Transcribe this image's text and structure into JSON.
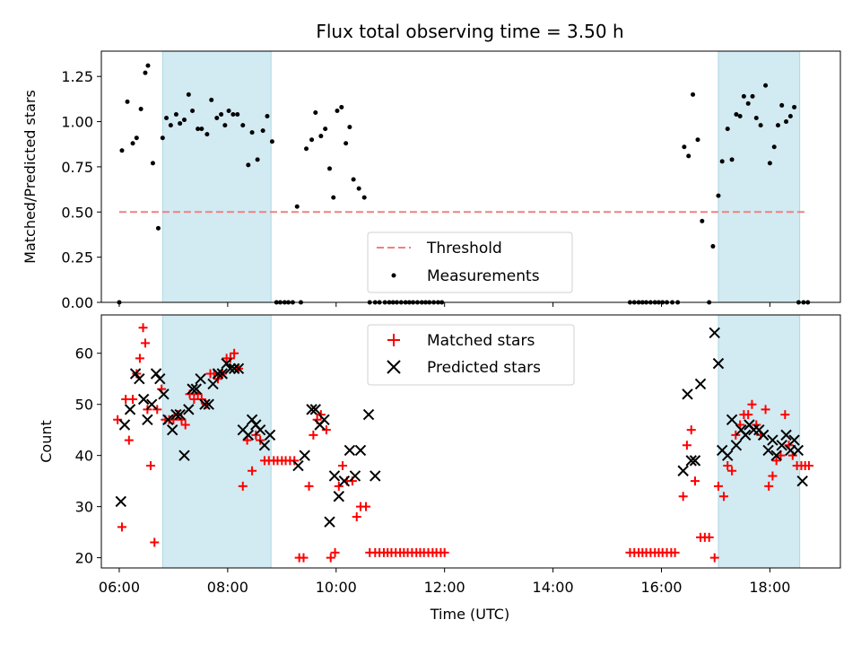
{
  "chart_data": [
    {
      "type": "scatter",
      "title": "Flux total observing time = 3.50 h",
      "ylabel": "Matched/Predicted stars",
      "ylim": [
        0,
        1.39
      ],
      "yticks": [
        "0.00",
        "0.25",
        "0.50",
        "0.75",
        "1.00",
        "1.25"
      ],
      "threshold": 0.5,
      "threshold_x": [
        6.0,
        18.7
      ],
      "legend": {
        "placement": "bottom-center",
        "entries": [
          "Threshold",
          "Measurements"
        ]
      },
      "shaded_regions": [
        [
          6.8,
          8.8
        ],
        [
          17.05,
          18.55
        ]
      ],
      "colors": {
        "threshold": "#f08080",
        "measurements": "#000000",
        "shade": "#add8e6"
      },
      "series": [
        {
          "name": "Measurements",
          "x": [
            6.0,
            6.05,
            6.15,
            6.25,
            6.32,
            6.4,
            6.48,
            6.53,
            6.62,
            6.72,
            6.8,
            6.87,
            6.95,
            7.05,
            7.12,
            7.2,
            7.28,
            7.35,
            7.45,
            7.52,
            7.62,
            7.7,
            7.8,
            7.88,
            7.95,
            8.02,
            8.1,
            8.18,
            8.28,
            8.38,
            8.45,
            8.55,
            8.65,
            8.73,
            8.82,
            8.9,
            8.97,
            9.05,
            9.12,
            9.2,
            9.28,
            9.35,
            9.45,
            9.55,
            9.62,
            9.72,
            9.8,
            9.88,
            9.95,
            10.02,
            10.1,
            10.18,
            10.25,
            10.32,
            10.42,
            10.52,
            10.62,
            10.72,
            10.8,
            10.9,
            10.98,
            11.05,
            11.12,
            11.2,
            11.28,
            11.35,
            11.42,
            11.5,
            11.58,
            11.65,
            11.72,
            11.8,
            11.88,
            11.95,
            15.42,
            15.5,
            15.58,
            15.65,
            15.72,
            15.8,
            15.88,
            15.95,
            16.02,
            16.1,
            16.2,
            16.3,
            16.42,
            16.5,
            16.58,
            16.67,
            16.75,
            16.88,
            16.95,
            17.05,
            17.12,
            17.22,
            17.3,
            17.38,
            17.45,
            17.52,
            17.6,
            17.68,
            17.75,
            17.83,
            17.92,
            18.0,
            18.08,
            18.15,
            18.22,
            18.3,
            18.38,
            18.45,
            18.53,
            18.62,
            18.7
          ],
          "y": [
            0.0,
            0.84,
            1.11,
            0.88,
            0.91,
            1.07,
            1.27,
            1.31,
            0.77,
            0.41,
            0.91,
            1.02,
            0.98,
            1.04,
            0.99,
            1.01,
            1.15,
            1.06,
            0.96,
            0.96,
            0.93,
            1.12,
            1.02,
            1.04,
            0.98,
            1.06,
            1.04,
            1.04,
            0.98,
            0.76,
            0.94,
            0.79,
            0.95,
            1.03,
            0.89,
            0.0,
            0.0,
            0.0,
            0.0,
            0.0,
            0.53,
            0.0,
            0.85,
            0.9,
            1.05,
            0.92,
            0.96,
            0.74,
            0.58,
            1.06,
            1.08,
            0.88,
            0.97,
            0.68,
            0.63,
            0.58,
            0.0,
            0.0,
            0.0,
            0.0,
            0.0,
            0.0,
            0.0,
            0.0,
            0.0,
            0.0,
            0.0,
            0.0,
            0.0,
            0.0,
            0.0,
            0.0,
            0.0,
            0.0,
            0.0,
            0.0,
            0.0,
            0.0,
            0.0,
            0.0,
            0.0,
            0.0,
            0.0,
            0.0,
            0.0,
            0.0,
            0.86,
            0.81,
            1.15,
            0.9,
            0.45,
            0.0,
            0.31,
            0.59,
            0.78,
            0.96,
            0.79,
            1.04,
            1.03,
            1.14,
            1.1,
            1.14,
            1.02,
            0.98,
            1.2,
            0.77,
            0.86,
            0.98,
            1.09,
            1.0,
            1.03,
            1.08,
            0.0,
            0.0,
            0.0
          ]
        }
      ]
    },
    {
      "type": "scatter",
      "xlabel": "Time (UTC)",
      "ylabel": "Count",
      "xlim": [
        5.67,
        19.3
      ],
      "ylim": [
        18,
        67.5
      ],
      "yticks": [
        "20",
        "30",
        "40",
        "50",
        "60"
      ],
      "xticks": [
        "06:00",
        "08:00",
        "10:00",
        "12:00",
        "14:00",
        "16:00",
        "18:00"
      ],
      "legend": {
        "placement": "top-center",
        "entries": [
          "Matched stars",
          "Predicted stars"
        ]
      },
      "shaded_regions": [
        [
          6.8,
          8.8
        ],
        [
          17.05,
          18.55
        ]
      ],
      "colors": {
        "matched": "#ff0000",
        "predicted": "#000000",
        "shade": "#add8e6"
      },
      "series": [
        {
          "name": "Matched stars",
          "x": [
            5.97,
            6.05,
            6.12,
            6.18,
            6.25,
            6.32,
            6.38,
            6.44,
            6.48,
            6.52,
            6.58,
            6.65,
            6.7,
            6.78,
            6.85,
            6.92,
            7.0,
            7.08,
            7.15,
            7.22,
            7.3,
            7.38,
            7.45,
            7.52,
            7.6,
            7.68,
            7.75,
            7.82,
            7.9,
            7.98,
            8.05,
            8.12,
            8.2,
            8.28,
            8.36,
            8.45,
            8.52,
            8.6,
            8.68,
            8.76,
            8.85,
            8.92,
            9.0,
            9.07,
            9.15,
            9.23,
            9.32,
            9.4,
            9.5,
            9.58,
            9.65,
            9.72,
            9.82,
            9.9,
            9.98,
            10.05,
            10.12,
            10.2,
            10.3,
            10.38,
            10.45,
            10.55,
            10.62,
            10.72,
            10.8,
            10.88,
            10.95,
            11.02,
            11.1,
            11.18,
            11.25,
            11.32,
            11.4,
            11.48,
            11.55,
            11.62,
            11.7,
            11.78,
            11.85,
            11.93,
            12.0,
            15.42,
            15.5,
            15.58,
            15.65,
            15.72,
            15.8,
            15.88,
            15.95,
            16.02,
            16.1,
            16.18,
            16.25,
            16.4,
            16.47,
            16.55,
            16.62,
            16.72,
            16.8,
            16.88,
            16.98,
            17.05,
            17.15,
            17.22,
            17.3,
            17.37,
            17.45,
            17.52,
            17.6,
            17.67,
            17.75,
            17.83,
            17.92,
            17.98,
            18.05,
            18.12,
            18.2,
            18.28,
            18.35,
            18.42,
            18.5,
            18.58,
            18.65,
            18.72
          ],
          "y": [
            47,
            26,
            51,
            43,
            51,
            56,
            59,
            65,
            62,
            49,
            38,
            23,
            49,
            53,
            47,
            47,
            47,
            48,
            47,
            46,
            52,
            51,
            52,
            51,
            50,
            56,
            56,
            55,
            56,
            59,
            59,
            60,
            57,
            34,
            43,
            37,
            44,
            43,
            39,
            39,
            39,
            39,
            39,
            39,
            39,
            39,
            20,
            20,
            34,
            44,
            47,
            48,
            45,
            20,
            21,
            34,
            38,
            35,
            35,
            28,
            30,
            30,
            21,
            21,
            21,
            21,
            21,
            21,
            21,
            21,
            21,
            21,
            21,
            21,
            21,
            21,
            21,
            21,
            21,
            21,
            21,
            21,
            21,
            21,
            21,
            21,
            21,
            21,
            21,
            21,
            21,
            21,
            21,
            32,
            42,
            45,
            35,
            24,
            24,
            24,
            20,
            34,
            32,
            38,
            37,
            44,
            46,
            48,
            48,
            50,
            46,
            44,
            49,
            34,
            36,
            39,
            40,
            48,
            42,
            40,
            38,
            38,
            38,
            38
          ],
          "marker": "plus"
        },
        {
          "name": "Predicted stars",
          "x": [
            6.03,
            6.1,
            6.2,
            6.3,
            6.37,
            6.45,
            6.52,
            6.6,
            6.68,
            6.75,
            6.82,
            6.9,
            6.98,
            7.05,
            7.12,
            7.2,
            7.28,
            7.35,
            7.42,
            7.5,
            7.58,
            7.65,
            7.73,
            7.82,
            7.9,
            7.98,
            8.05,
            8.12,
            8.2,
            8.28,
            8.38,
            8.45,
            8.52,
            8.6,
            8.68,
            8.78,
            9.3,
            9.42,
            9.55,
            9.62,
            9.7,
            9.78,
            9.88,
            9.97,
            10.05,
            10.15,
            10.25,
            10.35,
            10.45,
            10.6,
            10.72,
            16.4,
            16.48,
            16.55,
            16.62,
            16.72,
            16.98,
            17.05,
            17.12,
            17.22,
            17.3,
            17.38,
            17.47,
            17.55,
            17.62,
            17.7,
            17.8,
            17.88,
            17.97,
            18.05,
            18.12,
            18.22,
            18.3,
            18.38,
            18.45,
            18.52,
            18.6
          ],
          "y": [
            31,
            46,
            49,
            56,
            55,
            51,
            47,
            50,
            56,
            55,
            52,
            47,
            45,
            48,
            48,
            40,
            49,
            53,
            53,
            55,
            50,
            50,
            54,
            56,
            56,
            58,
            57,
            57,
            57,
            45,
            44,
            47,
            46,
            45,
            42,
            44,
            38,
            40,
            49,
            49,
            46,
            47,
            27,
            36,
            32,
            35,
            41,
            36,
            41,
            48,
            36,
            37,
            52,
            39,
            39,
            54,
            64,
            58,
            41,
            40,
            47,
            42,
            45,
            44,
            46,
            45,
            45,
            44,
            41,
            43,
            40,
            42,
            44,
            41,
            43,
            41,
            35
          ]
        }
      ]
    }
  ]
}
